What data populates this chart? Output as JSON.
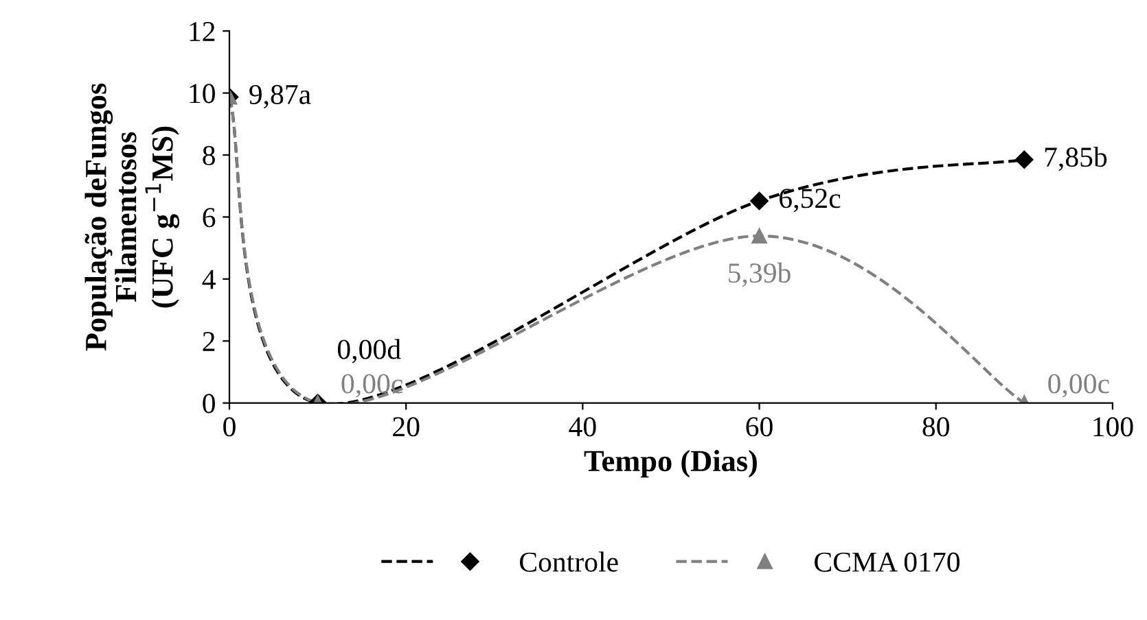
{
  "chart_data": {
    "type": "line",
    "xlabel": "Tempo (Dias)",
    "ylabel": "População deFungos\nFilamentosos\n(UFC g$^{−1}$MS)",
    "x": [
      0,
      10,
      60,
      90
    ],
    "series": [
      {
        "name": "Controle",
        "color": "#000000",
        "marker": "diamond",
        "values": [
          9.87,
          0,
          6.52,
          7.85
        ],
        "value_labels": [
          "9,87a",
          "0,00d",
          "6,52c",
          "7,85b"
        ]
      },
      {
        "name": "CCMA 0170",
        "color": "#808080",
        "marker": "triangle",
        "values": [
          9.87,
          0,
          5.39,
          0
        ],
        "value_labels": [
          null,
          "0,00c",
          "5,39b",
          "0,00c"
        ]
      }
    ],
    "xlim": [
      0,
      100
    ],
    "xticks": [
      0,
      20,
      40,
      60,
      80,
      100
    ],
    "ylim": [
      0,
      12
    ],
    "yticks": [
      0,
      2,
      4,
      6,
      8,
      10,
      12
    ],
    "line_style": "dashed",
    "grid": false,
    "legend": "bottom"
  }
}
